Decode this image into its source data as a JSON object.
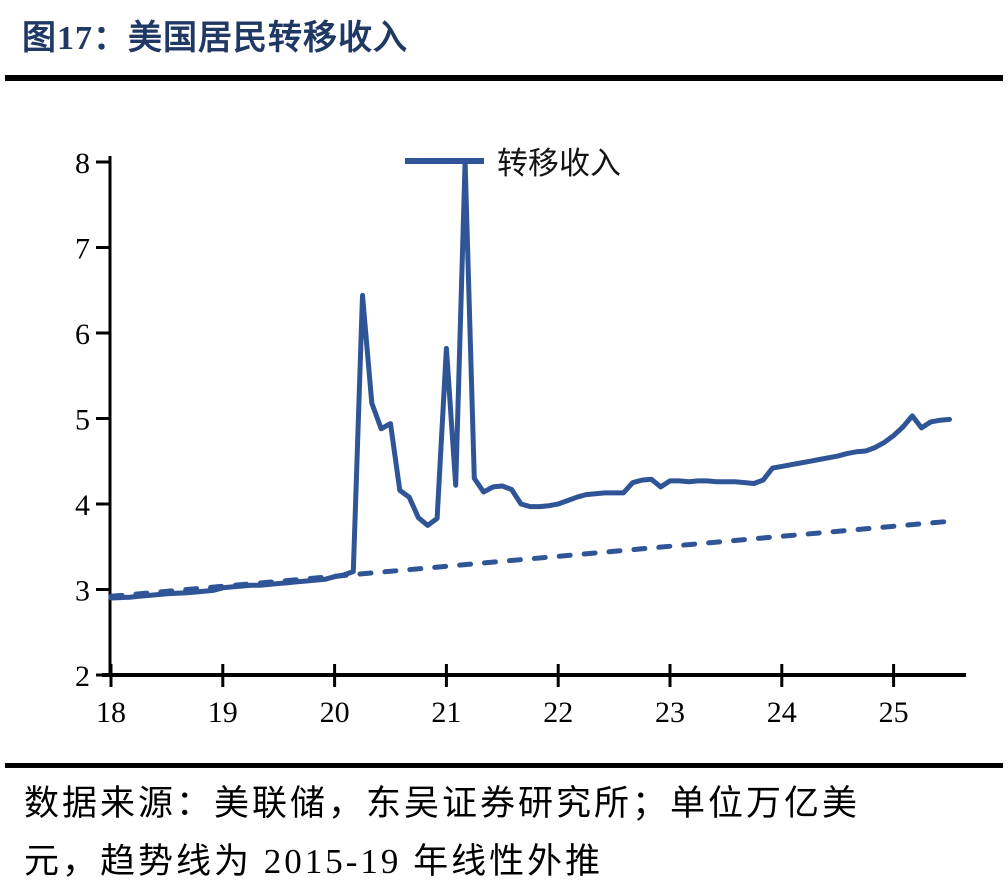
{
  "page": {
    "title": "图17：美国居民转移收入",
    "footer_line1": "数据来源：美联储，东吴证券研究所；单位万亿美",
    "footer_line2": "元，趋势线为 2015-19 年线性外推"
  },
  "colors": {
    "series_blue": "#2F5597",
    "title_navy": "#1F3864",
    "axis_black": "#000000"
  },
  "chart_data": {
    "type": "line",
    "title": "美国居民转移收入",
    "unit_note": "单位万亿美元",
    "trend_note": "趋势线为2015-19年线性外推",
    "xlabel": "",
    "ylabel": "",
    "xlim": [
      18,
      25.65
    ],
    "ylim": [
      2,
      8
    ],
    "x_ticks": [
      18,
      19,
      20,
      21,
      22,
      23,
      24,
      25
    ],
    "y_ticks": [
      2,
      3,
      4,
      5,
      6,
      7,
      8
    ],
    "grid": false,
    "legend_position": "top-center",
    "series": [
      {
        "name": "转移收入",
        "style": "solid",
        "points": [
          [
            18.0,
            2.9
          ],
          [
            18.083,
            2.905
          ],
          [
            18.167,
            2.91
          ],
          [
            18.25,
            2.92
          ],
          [
            18.333,
            2.93
          ],
          [
            18.417,
            2.94
          ],
          [
            18.5,
            2.95
          ],
          [
            18.583,
            2.955
          ],
          [
            18.667,
            2.96
          ],
          [
            18.75,
            2.97
          ],
          [
            18.833,
            2.98
          ],
          [
            18.917,
            2.99
          ],
          [
            19.0,
            3.02
          ],
          [
            19.083,
            3.03
          ],
          [
            19.167,
            3.04
          ],
          [
            19.25,
            3.05
          ],
          [
            19.333,
            3.05
          ],
          [
            19.417,
            3.06
          ],
          [
            19.5,
            3.07
          ],
          [
            19.583,
            3.08
          ],
          [
            19.667,
            3.09
          ],
          [
            19.75,
            3.1
          ],
          [
            19.833,
            3.11
          ],
          [
            19.917,
            3.12
          ],
          [
            20.0,
            3.15
          ],
          [
            20.083,
            3.17
          ],
          [
            20.167,
            3.21
          ],
          [
            20.25,
            6.44
          ],
          [
            20.333,
            5.18
          ],
          [
            20.417,
            4.88
          ],
          [
            20.5,
            4.94
          ],
          [
            20.583,
            4.16
          ],
          [
            20.667,
            4.08
          ],
          [
            20.75,
            3.84
          ],
          [
            20.833,
            3.75
          ],
          [
            20.917,
            3.83
          ],
          [
            21.0,
            5.82
          ],
          [
            21.083,
            4.22
          ],
          [
            21.167,
            8.0
          ],
          [
            21.25,
            4.3
          ],
          [
            21.333,
            4.14
          ],
          [
            21.417,
            4.2
          ],
          [
            21.5,
            4.21
          ],
          [
            21.583,
            4.17
          ],
          [
            21.667,
            4.0
          ],
          [
            21.75,
            3.97
          ],
          [
            21.833,
            3.97
          ],
          [
            21.917,
            3.98
          ],
          [
            22.0,
            4.0
          ],
          [
            22.083,
            4.04
          ],
          [
            22.167,
            4.08
          ],
          [
            22.25,
            4.11
          ],
          [
            22.333,
            4.12
          ],
          [
            22.417,
            4.13
          ],
          [
            22.5,
            4.13
          ],
          [
            22.583,
            4.13
          ],
          [
            22.667,
            4.25
          ],
          [
            22.75,
            4.28
          ],
          [
            22.833,
            4.29
          ],
          [
            22.917,
            4.2
          ],
          [
            23.0,
            4.27
          ],
          [
            23.083,
            4.27
          ],
          [
            23.167,
            4.26
          ],
          [
            23.25,
            4.27
          ],
          [
            23.333,
            4.27
          ],
          [
            23.417,
            4.26
          ],
          [
            23.5,
            4.26
          ],
          [
            23.583,
            4.26
          ],
          [
            23.667,
            4.25
          ],
          [
            23.75,
            4.24
          ],
          [
            23.833,
            4.28
          ],
          [
            23.917,
            4.42
          ],
          [
            24.0,
            4.44
          ],
          [
            24.083,
            4.46
          ],
          [
            24.167,
            4.48
          ],
          [
            24.25,
            4.5
          ],
          [
            24.333,
            4.52
          ],
          [
            24.417,
            4.54
          ],
          [
            24.5,
            4.56
          ],
          [
            24.583,
            4.59
          ],
          [
            24.667,
            4.61
          ],
          [
            24.75,
            4.62
          ],
          [
            24.833,
            4.66
          ],
          [
            24.917,
            4.72
          ],
          [
            25.0,
            4.8
          ],
          [
            25.083,
            4.9
          ],
          [
            25.167,
            5.03
          ],
          [
            25.25,
            4.89
          ],
          [
            25.333,
            4.96
          ],
          [
            25.417,
            4.98
          ],
          [
            25.5,
            4.99
          ]
        ]
      },
      {
        "name": "趋势线（2015-19年线性外推）",
        "style": "dashed",
        "points": [
          [
            18.0,
            2.92
          ],
          [
            25.52,
            3.8
          ]
        ]
      }
    ]
  }
}
